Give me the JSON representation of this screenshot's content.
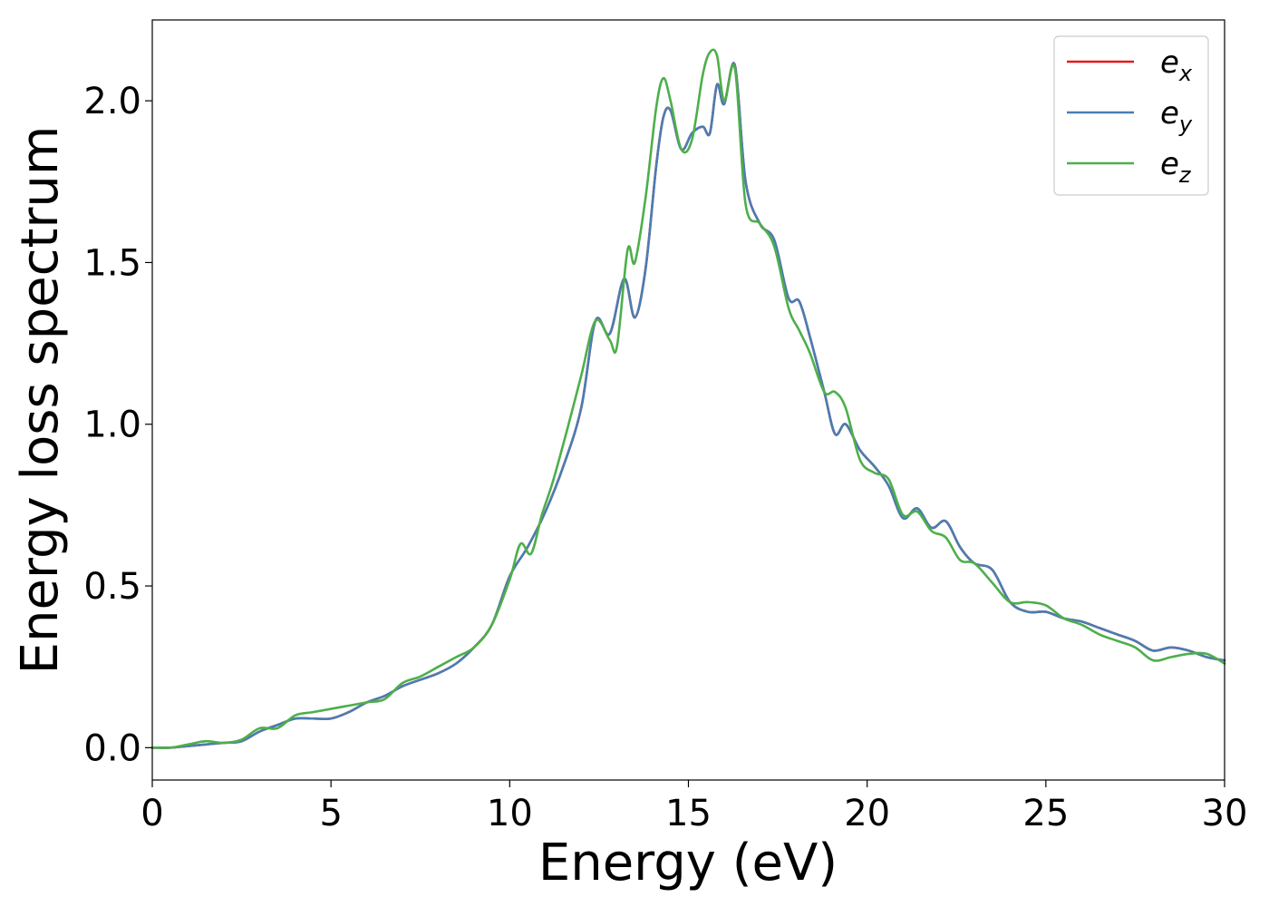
{
  "chart_data": {
    "type": "line",
    "title": "",
    "xlabel": "Energy (eV)",
    "ylabel": "Energy loss spectrum",
    "xlim": [
      0,
      30
    ],
    "ylim": [
      -0.1,
      2.25
    ],
    "xticks": [
      0,
      5,
      10,
      15,
      20,
      25,
      30
    ],
    "xtick_labels": [
      "0",
      "5",
      "10",
      "15",
      "20",
      "25",
      "30"
    ],
    "yticks": [
      0.0,
      0.5,
      1.0,
      1.5,
      2.0
    ],
    "ytick_labels": [
      "0.0",
      "0.5",
      "1.0",
      "1.5",
      "2.0"
    ],
    "grid": false,
    "legend_position": "top-right",
    "series": [
      {
        "name": "e",
        "subscript": "x",
        "color": "#e41a1c",
        "x": [
          0,
          0.5,
          1,
          1.5,
          2,
          2.5,
          3,
          3.5,
          4,
          4.5,
          5,
          5.5,
          6,
          6.5,
          7,
          7.5,
          8,
          8.5,
          9,
          9.5,
          10,
          10.5,
          11,
          11.5,
          12,
          12.4,
          12.8,
          13.2,
          13.5,
          13.8,
          14.1,
          14.3,
          14.5,
          14.8,
          15.1,
          15.4,
          15.6,
          15.8,
          16.0,
          16.3,
          16.6,
          17.0,
          17.4,
          17.8,
          18.1,
          18.4,
          18.8,
          19.1,
          19.4,
          19.8,
          20.2,
          20.6,
          21.0,
          21.4,
          21.8,
          22.2,
          22.6,
          23.0,
          23.5,
          24.0,
          24.5,
          25.0,
          25.5,
          26.0,
          26.5,
          27.0,
          27.5,
          28.0,
          28.5,
          29.0,
          29.5,
          30
        ],
        "y": [
          0.0,
          0.0,
          0.005,
          0.01,
          0.015,
          0.02,
          0.05,
          0.07,
          0.09,
          0.09,
          0.09,
          0.11,
          0.14,
          0.16,
          0.19,
          0.21,
          0.23,
          0.26,
          0.31,
          0.38,
          0.53,
          0.62,
          0.73,
          0.87,
          1.05,
          1.32,
          1.28,
          1.45,
          1.33,
          1.48,
          1.8,
          1.95,
          1.97,
          1.85,
          1.9,
          1.92,
          1.9,
          2.05,
          1.99,
          2.11,
          1.75,
          1.62,
          1.57,
          1.39,
          1.38,
          1.27,
          1.1,
          0.97,
          1.0,
          0.92,
          0.87,
          0.81,
          0.71,
          0.74,
          0.68,
          0.7,
          0.62,
          0.57,
          0.55,
          0.45,
          0.42,
          0.42,
          0.4,
          0.39,
          0.37,
          0.35,
          0.33,
          0.3,
          0.31,
          0.3,
          0.28,
          0.27
        ]
      },
      {
        "name": "e",
        "subscript": "y",
        "color": "#4a7db3",
        "x": [
          0,
          0.5,
          1,
          1.5,
          2,
          2.5,
          3,
          3.5,
          4,
          4.5,
          5,
          5.5,
          6,
          6.5,
          7,
          7.5,
          8,
          8.5,
          9,
          9.5,
          10,
          10.5,
          11,
          11.5,
          12,
          12.4,
          12.8,
          13.2,
          13.5,
          13.8,
          14.1,
          14.3,
          14.5,
          14.8,
          15.1,
          15.4,
          15.6,
          15.8,
          16.0,
          16.3,
          16.6,
          17.0,
          17.4,
          17.8,
          18.1,
          18.4,
          18.8,
          19.1,
          19.4,
          19.8,
          20.2,
          20.6,
          21.0,
          21.4,
          21.8,
          22.2,
          22.6,
          23.0,
          23.5,
          24.0,
          24.5,
          25.0,
          25.5,
          26.0,
          26.5,
          27.0,
          27.5,
          28.0,
          28.5,
          29.0,
          29.5,
          30
        ],
        "y": [
          0.0,
          0.0,
          0.005,
          0.01,
          0.015,
          0.02,
          0.05,
          0.07,
          0.09,
          0.09,
          0.09,
          0.11,
          0.14,
          0.16,
          0.19,
          0.21,
          0.23,
          0.26,
          0.31,
          0.38,
          0.53,
          0.62,
          0.73,
          0.87,
          1.05,
          1.32,
          1.28,
          1.45,
          1.33,
          1.48,
          1.8,
          1.95,
          1.97,
          1.85,
          1.9,
          1.92,
          1.9,
          2.05,
          1.99,
          2.11,
          1.75,
          1.62,
          1.57,
          1.39,
          1.38,
          1.27,
          1.1,
          0.97,
          1.0,
          0.92,
          0.87,
          0.81,
          0.71,
          0.74,
          0.68,
          0.7,
          0.62,
          0.57,
          0.55,
          0.45,
          0.42,
          0.42,
          0.4,
          0.39,
          0.37,
          0.35,
          0.33,
          0.3,
          0.31,
          0.3,
          0.28,
          0.27
        ]
      },
      {
        "name": "e",
        "subscript": "z",
        "color": "#4daf4a",
        "x": [
          0,
          0.5,
          1,
          1.5,
          2,
          2.5,
          3,
          3.5,
          4,
          4.5,
          5,
          5.5,
          6,
          6.5,
          7,
          7.5,
          8,
          8.5,
          9,
          9.5,
          10,
          10.3,
          10.6,
          10.9,
          11.2,
          11.6,
          12,
          12.4,
          12.8,
          13.0,
          13.3,
          13.5,
          13.8,
          14.1,
          14.3,
          14.5,
          14.8,
          15.1,
          15.4,
          15.6,
          15.8,
          16.0,
          16.3,
          16.6,
          17.0,
          17.4,
          17.8,
          18.1,
          18.4,
          18.8,
          19.1,
          19.4,
          19.8,
          20.2,
          20.6,
          21.0,
          21.4,
          21.8,
          22.2,
          22.6,
          23.0,
          23.5,
          24.0,
          24.5,
          25.0,
          25.5,
          26.0,
          26.5,
          27.0,
          27.5,
          28.0,
          28.5,
          29.0,
          29.5,
          30
        ],
        "y": [
          0.0,
          0.0,
          0.01,
          0.02,
          0.015,
          0.025,
          0.06,
          0.06,
          0.1,
          0.11,
          0.12,
          0.13,
          0.14,
          0.15,
          0.2,
          0.22,
          0.25,
          0.28,
          0.31,
          0.38,
          0.52,
          0.63,
          0.6,
          0.72,
          0.82,
          0.98,
          1.15,
          1.32,
          1.26,
          1.24,
          1.54,
          1.5,
          1.7,
          1.98,
          2.07,
          2.0,
          1.85,
          1.88,
          2.08,
          2.15,
          2.14,
          2.0,
          2.1,
          1.68,
          1.62,
          1.55,
          1.36,
          1.29,
          1.22,
          1.1,
          1.1,
          1.05,
          0.89,
          0.85,
          0.83,
          0.72,
          0.73,
          0.67,
          0.65,
          0.58,
          0.57,
          0.51,
          0.45,
          0.45,
          0.44,
          0.4,
          0.38,
          0.35,
          0.33,
          0.31,
          0.27,
          0.28,
          0.29,
          0.29,
          0.26
        ]
      }
    ]
  }
}
